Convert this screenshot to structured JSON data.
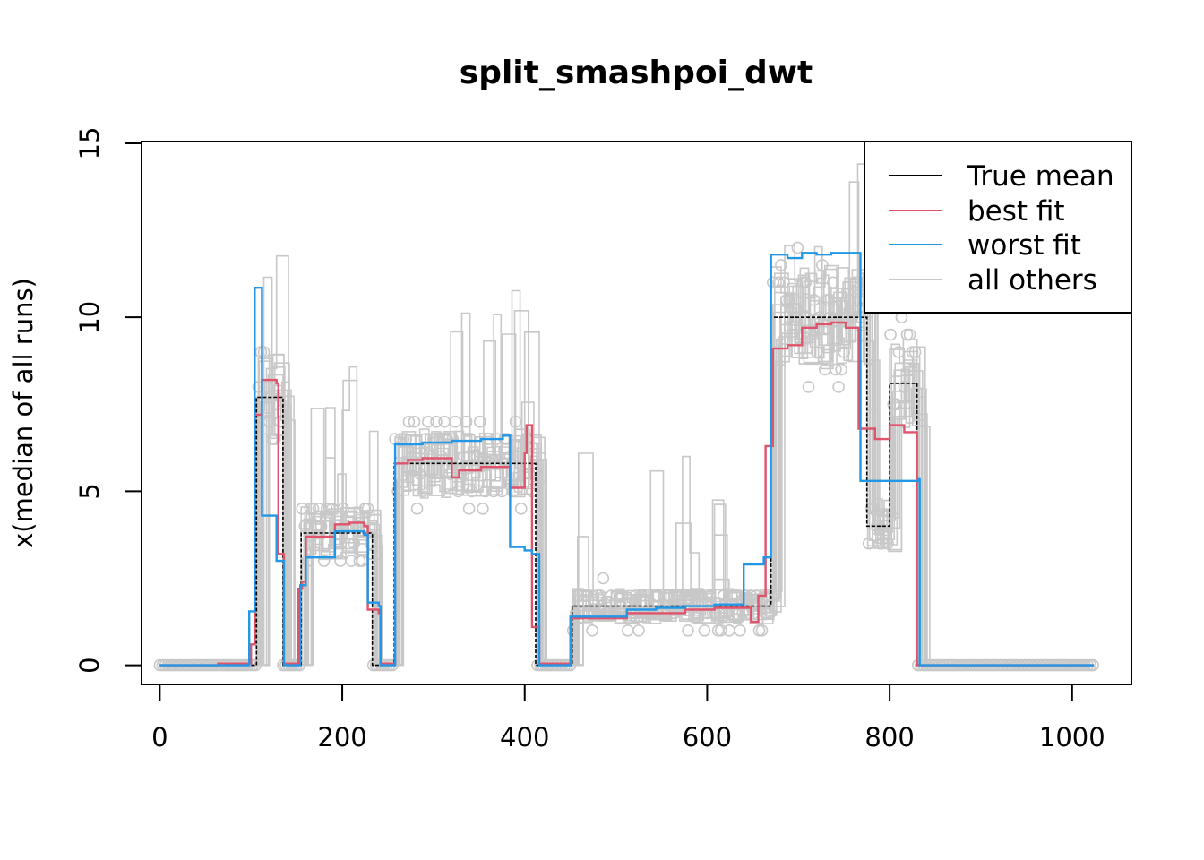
{
  "chart_data": {
    "type": "line",
    "title": "split_smashpoi_dwt",
    "xlabel": "",
    "ylabel": "x(median of all runs)",
    "xlim": [
      -20,
      1065
    ],
    "ylim": [
      -0.55,
      15.05
    ],
    "x_ticks": [
      "0",
      "200",
      "400",
      "600",
      "800",
      "1000"
    ],
    "y_ticks": [
      "0",
      "5",
      "10",
      "15"
    ],
    "legend_position": "top-right",
    "legend": [
      "True mean",
      "best fit",
      "worst fit",
      "all others"
    ],
    "colors": {
      "true_mean": "#000000",
      "best_fit": "#DF536B",
      "worst_fit": "#2297E6",
      "others": "#C8C8C8",
      "points": "#C8C8C8"
    },
    "series": [
      {
        "name": "True mean",
        "steps": [
          [
            0,
            0
          ],
          [
            102,
            0
          ],
          [
            106,
            7.7
          ],
          [
            133,
            7.7
          ],
          [
            135,
            0
          ],
          [
            152,
            0
          ],
          [
            155,
            3.8
          ],
          [
            230,
            3.8
          ],
          [
            233,
            0
          ],
          [
            255,
            0
          ],
          [
            257,
            5.8
          ],
          [
            411,
            5.8
          ],
          [
            412,
            0
          ],
          [
            450,
            0
          ],
          [
            452,
            1.7
          ],
          [
            668,
            1.7
          ],
          [
            670,
            10
          ],
          [
            773,
            10
          ],
          [
            775,
            4
          ],
          [
            797,
            4
          ],
          [
            800,
            8.1
          ],
          [
            828,
            8.1
          ],
          [
            830,
            0
          ],
          [
            1024,
            0
          ]
        ]
      },
      {
        "name": "best fit",
        "steps": [
          [
            0,
            0
          ],
          [
            64,
            0.05
          ],
          [
            96,
            0.05
          ],
          [
            100,
            0.6
          ],
          [
            104,
            7.2
          ],
          [
            112,
            8.2
          ],
          [
            128,
            8.1
          ],
          [
            130,
            3.2
          ],
          [
            136,
            0.05
          ],
          [
            150,
            0.05
          ],
          [
            152,
            2.2
          ],
          [
            156,
            2.4
          ],
          [
            160,
            3.7
          ],
          [
            176,
            3.7
          ],
          [
            192,
            4.05
          ],
          [
            208,
            4.1
          ],
          [
            224,
            4.0
          ],
          [
            228,
            1.6
          ],
          [
            240,
            1.5
          ],
          [
            242,
            0.05
          ],
          [
            256,
            0.05
          ],
          [
            258,
            5.8
          ],
          [
            272,
            5.9
          ],
          [
            288,
            5.95
          ],
          [
            320,
            5.4
          ],
          [
            328,
            5.6
          ],
          [
            352,
            5.7
          ],
          [
            384,
            5.1
          ],
          [
            400,
            6.1
          ],
          [
            402,
            6.9
          ],
          [
            408,
            1.1
          ],
          [
            416,
            0.05
          ],
          [
            448,
            0.05
          ],
          [
            450,
            1.35
          ],
          [
            512,
            1.5
          ],
          [
            576,
            1.6
          ],
          [
            608,
            1.65
          ],
          [
            648,
            1.25
          ],
          [
            656,
            2.0
          ],
          [
            664,
            6.3
          ],
          [
            672,
            9.1
          ],
          [
            688,
            9.2
          ],
          [
            704,
            9.7
          ],
          [
            720,
            9.8
          ],
          [
            736,
            9.85
          ],
          [
            752,
            9.7
          ],
          [
            766,
            6.8
          ],
          [
            784,
            6.5
          ],
          [
            800,
            6.9
          ],
          [
            816,
            6.7
          ],
          [
            830,
            0
          ],
          [
            1024,
            0
          ]
        ]
      },
      {
        "name": "worst fit",
        "steps": [
          [
            0,
            0
          ],
          [
            96,
            0
          ],
          [
            98,
            1.55
          ],
          [
            104,
            10.85
          ],
          [
            112,
            4.3
          ],
          [
            128,
            3.0
          ],
          [
            136,
            0
          ],
          [
            152,
            0
          ],
          [
            154,
            2.3
          ],
          [
            160,
            3.1
          ],
          [
            192,
            3.85
          ],
          [
            224,
            3.75
          ],
          [
            228,
            1.8
          ],
          [
            240,
            1.7
          ],
          [
            242,
            0
          ],
          [
            256,
            0
          ],
          [
            258,
            6.35
          ],
          [
            288,
            6.4
          ],
          [
            320,
            6.45
          ],
          [
            352,
            6.5
          ],
          [
            376,
            6.6
          ],
          [
            384,
            3.4
          ],
          [
            400,
            3.3
          ],
          [
            408,
            3.2
          ],
          [
            416,
            0
          ],
          [
            448,
            0
          ],
          [
            450,
            1.4
          ],
          [
            512,
            1.6
          ],
          [
            544,
            1.65
          ],
          [
            576,
            1.7
          ],
          [
            608,
            1.75
          ],
          [
            640,
            2.9
          ],
          [
            662,
            3.1
          ],
          [
            670,
            11.8
          ],
          [
            688,
            11.7
          ],
          [
            704,
            11.85
          ],
          [
            720,
            11.8
          ],
          [
            736,
            11.85
          ],
          [
            768,
            5.3
          ],
          [
            832,
            5.35
          ],
          [
            833,
            0
          ],
          [
            1024,
            0
          ]
        ]
      }
    ]
  }
}
